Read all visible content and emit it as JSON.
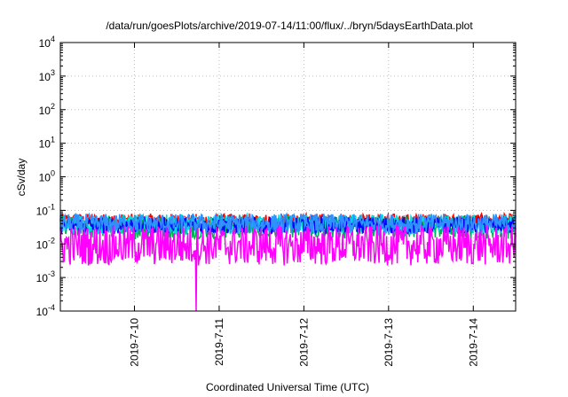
{
  "chart_data": {
    "type": "line",
    "title": "/data/run/goesPlots/archive/2019-07-14/11:00/flux/../bryn/5daysEarthData.plot",
    "xlabel": "Coordinated Universal Time (UTC)",
    "ylabel": "cSv/day",
    "yscale": "log",
    "ylim": [
      0.0001,
      10000
    ],
    "yticks": [
      {
        "value": 0.0001,
        "base": "10",
        "exp": "-4"
      },
      {
        "value": 0.001,
        "base": "10",
        "exp": "-3"
      },
      {
        "value": 0.01,
        "base": "10",
        "exp": "-2"
      },
      {
        "value": 0.1,
        "base": "10",
        "exp": "-1"
      },
      {
        "value": 1,
        "base": "10",
        "exp": "0"
      },
      {
        "value": 10,
        "base": "10",
        "exp": "1"
      },
      {
        "value": 100,
        "base": "10",
        "exp": "2"
      },
      {
        "value": 1000,
        "base": "10",
        "exp": "3"
      },
      {
        "value": 10000,
        "base": "10",
        "exp": "4"
      }
    ],
    "xlim": [
      "2019-07-09 03:00",
      "2019-07-14 12:00"
    ],
    "xticks": [
      {
        "value": "2019-07-10 00:00",
        "label": "2019-7-10"
      },
      {
        "value": "2019-07-11 00:00",
        "label": "2019-7-11"
      },
      {
        "value": "2019-07-12 00:00",
        "label": "2019-7-12"
      },
      {
        "value": "2019-07-13 00:00",
        "label": "2019-7-13"
      },
      {
        "value": "2019-07-14 00:00",
        "label": "2019-7-14"
      }
    ],
    "grid": true,
    "series": [
      {
        "color": "#ff0000",
        "level": 0.05,
        "spread": 0.2
      },
      {
        "color": "#00b050",
        "level": 0.032,
        "spread": 0.35
      },
      {
        "color": "#00e0e0",
        "level": 0.038,
        "spread": 0.3
      },
      {
        "color": "#0000ff",
        "level": 0.036,
        "spread": 0.25
      },
      {
        "color": "#3090ff",
        "level": 0.04,
        "spread": 0.3
      },
      {
        "color": "#ff00ff",
        "level": 0.009,
        "spread": 0.6,
        "dropout": {
          "x": "2019-07-10 17:30",
          "y": 0.0001
        }
      }
    ]
  }
}
